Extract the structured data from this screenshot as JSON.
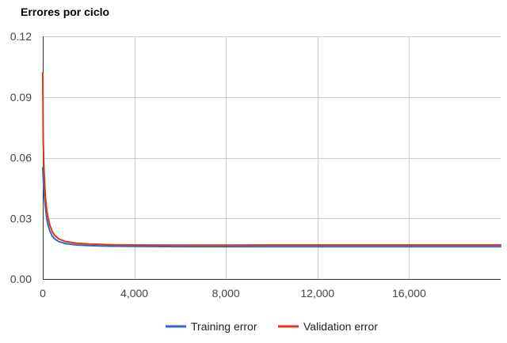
{
  "chart_data": {
    "type": "line",
    "title": "Errores por ciclo",
    "xlabel": "",
    "ylabel": "",
    "xlim": [
      0,
      20000
    ],
    "ylim": [
      0,
      0.12
    ],
    "x_ticks": [
      0,
      4000,
      8000,
      12000,
      16000
    ],
    "x_tick_labels": [
      "0",
      "4,000",
      "8,000",
      "12,000",
      "16,000"
    ],
    "y_ticks": [
      0,
      0.03,
      0.06,
      0.09,
      0.12
    ],
    "y_tick_labels": [
      "0.00",
      "0.03",
      "0.06",
      "0.09",
      "0.12"
    ],
    "grid": true,
    "legend_position": "bottom",
    "series": [
      {
        "name": "Training error",
        "color": "#3366cc",
        "x": [
          0,
          20,
          50,
          100,
          150,
          200,
          300,
          400,
          500,
          700,
          1000,
          1500,
          2000,
          3000,
          4000,
          6000,
          8000,
          10000,
          12000,
          14000,
          16000,
          18000,
          20000
        ],
        "y": [
          0.055,
          0.05,
          0.044,
          0.037,
          0.032,
          0.028,
          0.024,
          0.0215,
          0.02,
          0.0185,
          0.0175,
          0.0168,
          0.0165,
          0.0162,
          0.0161,
          0.016,
          0.016,
          0.016,
          0.016,
          0.016,
          0.016,
          0.016,
          0.016
        ]
      },
      {
        "name": "Validation error",
        "color": "#dc3912",
        "x": [
          0,
          20,
          50,
          100,
          150,
          200,
          300,
          400,
          500,
          700,
          1000,
          1500,
          2000,
          3000,
          4000,
          6000,
          8000,
          10000,
          12000,
          14000,
          16000,
          18000,
          20000
        ],
        "y": [
          0.102,
          0.068,
          0.055,
          0.043,
          0.036,
          0.032,
          0.027,
          0.0238,
          0.0218,
          0.0198,
          0.0185,
          0.0177,
          0.0173,
          0.0169,
          0.0168,
          0.0167,
          0.0167,
          0.0168,
          0.0168,
          0.0168,
          0.0168,
          0.0168,
          0.0168
        ]
      }
    ]
  }
}
